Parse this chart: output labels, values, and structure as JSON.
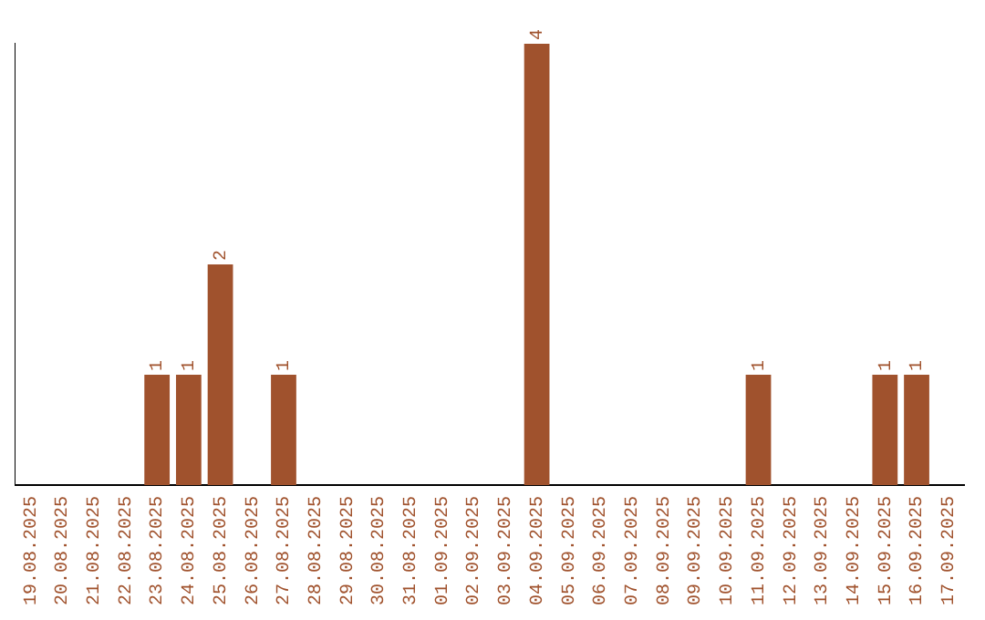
{
  "chart_data": {
    "type": "bar",
    "categories": [
      "19.08.2025",
      "20.08.2025",
      "21.08.2025",
      "22.08.2025",
      "23.08.2025",
      "24.08.2025",
      "25.08.2025",
      "26.08.2025",
      "27.08.2025",
      "28.08.2025",
      "29.08.2025",
      "30.08.2025",
      "31.08.2025",
      "01.09.2025",
      "02.09.2025",
      "03.09.2025",
      "04.09.2025",
      "05.09.2025",
      "06.09.2025",
      "07.09.2025",
      "08.09.2025",
      "09.09.2025",
      "10.09.2025",
      "11.09.2025",
      "12.09.2025",
      "13.09.2025",
      "14.09.2025",
      "15.09.2025",
      "16.09.2025",
      "17.09.2025"
    ],
    "values": [
      0,
      0,
      0,
      0,
      1,
      1,
      2,
      0,
      1,
      0,
      0,
      0,
      0,
      0,
      0,
      0,
      4,
      0,
      0,
      0,
      0,
      0,
      0,
      1,
      0,
      0,
      0,
      1,
      1,
      0
    ],
    "value_labels": [
      null,
      null,
      null,
      null,
      "1",
      "1",
      "2",
      null,
      "1",
      null,
      null,
      null,
      null,
      null,
      null,
      null,
      "4",
      null,
      null,
      null,
      null,
      null,
      null,
      "1",
      null,
      null,
      null,
      "1",
      "1",
      null
    ],
    "color": "#a0522d",
    "tick_labels": "x",
    "grid": false,
    "legend": false
  }
}
